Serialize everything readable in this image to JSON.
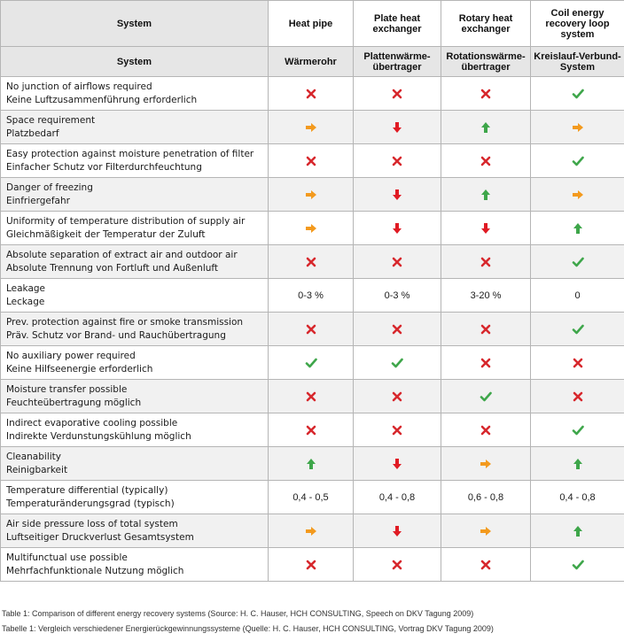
{
  "header": {
    "row1": [
      "System",
      "Heat pipe",
      "Plate heat exchanger",
      "Rotary heat exchanger",
      "Coil energy recovery loop system"
    ],
    "row2": [
      "System",
      "Wärmerohr",
      "Plattenwärme-übertrager",
      "Rotationswärme-übertrager",
      "Kreislauf-Verbund-System"
    ]
  },
  "colors": {
    "cross": "#d7282d",
    "check": "#3ea64a",
    "orange": "#f39a1e",
    "red": "#e01b24",
    "green": "#3ea64a"
  },
  "rows": [
    {
      "en": "No junction of airflows required",
      "de": "Keine Luftzusammenführung erforderlich",
      "cells": [
        "cross",
        "cross",
        "cross",
        "check"
      ]
    },
    {
      "en": "Space requirement",
      "de": "Platzbedarf",
      "cells": [
        "arrow-right",
        "arrow-down",
        "arrow-up",
        "arrow-right"
      ]
    },
    {
      "en": "Easy protection against moisture penetration of filter",
      "de": "Einfacher Schutz vor Filterdurchfeuchtung",
      "cells": [
        "cross",
        "cross",
        "cross",
        "check"
      ]
    },
    {
      "en": "Danger of freezing",
      "de": "Einfriergefahr",
      "cells": [
        "arrow-right",
        "arrow-down",
        "arrow-up",
        "arrow-right"
      ]
    },
    {
      "en": "Uniformity of temperature distribution of supply air",
      "de": "Gleichmäßigkeit der Temperatur der Zuluft",
      "cells": [
        "arrow-right",
        "arrow-down",
        "arrow-down",
        "arrow-up"
      ]
    },
    {
      "en": "Absolute separation of extract air and outdoor air",
      "de": "Absolute Trennung von Fortluft und Außenluft",
      "cells": [
        "cross",
        "cross",
        "cross",
        "check"
      ]
    },
    {
      "en": "Leakage",
      "de": "Leckage",
      "cells": [
        "text:0-3 %",
        "text:0-3 %",
        "text:3-20 %",
        "text:0"
      ]
    },
    {
      "en": "Prev. protection against fire or smoke transmission",
      "de": "Präv. Schutz vor Brand- und Rauchübertragung",
      "cells": [
        "cross",
        "cross",
        "cross",
        "check"
      ]
    },
    {
      "en": "No auxiliary power required",
      "de": "Keine Hilfseenergie erforderlich",
      "cells": [
        "check",
        "check",
        "cross",
        "cross"
      ]
    },
    {
      "en": "Moisture transfer possible",
      "de": "Feuchteübertragung möglich",
      "cells": [
        "cross",
        "cross",
        "check",
        "cross"
      ]
    },
    {
      "en": "Indirect evaporative cooling possible",
      "de": "Indirekte Verdunstungskühlung möglich",
      "cells": [
        "cross",
        "cross",
        "cross",
        "check"
      ]
    },
    {
      "en": "Cleanability",
      "de": "Reinigbarkeit",
      "cells": [
        "arrow-up",
        "arrow-down",
        "arrow-right",
        "arrow-up"
      ]
    },
    {
      "en": "Temperature differential (typically)",
      "de": "Temperaturänderungsgrad (typisch)",
      "cells": [
        "text:0,4 - 0,5",
        "text:0,4 - 0,8",
        "text:0,6 - 0,8",
        "text:0,4 - 0,8"
      ]
    },
    {
      "en": "Air side pressure loss of total system",
      "de": "Luftseitiger Druckverlust Gesamtsystem",
      "cells": [
        "arrow-right",
        "arrow-down",
        "arrow-right",
        "arrow-up"
      ]
    },
    {
      "en": "Multifunctual use possible",
      "de": "Mehrfachfunktionale Nutzung möglich",
      "cells": [
        "cross",
        "cross",
        "cross",
        "check"
      ]
    }
  ],
  "captions": [
    "Table 1: Comparison of different energy recovery systems (Source: H. C. Hauser, HCH CONSULTING, Speech on DKV Tagung 2009)",
    "Tabelle 1: Vergleich verschiedener Energierückgewinnungssysteme (Quelle: H. C. Hauser, HCH CONSULTING, Vortrag DKV Tagung 2009)"
  ]
}
